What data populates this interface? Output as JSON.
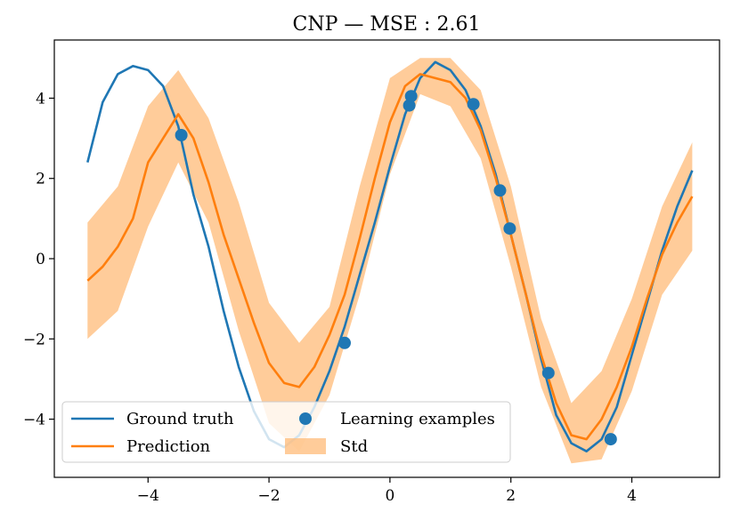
{
  "chart_data": {
    "type": "line",
    "title": "CNP — MSE : 2.61",
    "xlabel": "",
    "ylabel": "",
    "xlim": [
      -5.55,
      5.45
    ],
    "ylim": [
      -5.45,
      5.45
    ],
    "xticks": [
      -4,
      -2,
      0,
      2,
      4
    ],
    "yticks": [
      -4,
      -2,
      0,
      2,
      4
    ],
    "xtick_labels": [
      "−4",
      "−2",
      "0",
      "2",
      "4"
    ],
    "ytick_labels": [
      "−4",
      "−2",
      "0",
      "2",
      "4"
    ],
    "grid": false,
    "legend_position": "bottom-left",
    "series": [
      {
        "name": "Ground truth",
        "kind": "line",
        "color": "#1f77b4",
        "x": [
          -5.0,
          -4.75,
          -4.5,
          -4.25,
          -4.0,
          -3.75,
          -3.5,
          -3.25,
          -3.0,
          -2.75,
          -2.5,
          -2.25,
          -2.0,
          -1.75,
          -1.5,
          -1.25,
          -1.0,
          -0.75,
          -0.5,
          -0.25,
          0.0,
          0.25,
          0.5,
          0.75,
          1.0,
          1.25,
          1.5,
          1.75,
          2.0,
          2.25,
          2.5,
          2.75,
          3.0,
          3.25,
          3.5,
          3.75,
          4.0,
          4.25,
          4.5,
          4.75,
          5.0
        ],
        "y": [
          2.4,
          3.9,
          4.6,
          4.8,
          4.7,
          4.3,
          3.3,
          1.6,
          0.3,
          -1.3,
          -2.7,
          -3.8,
          -4.5,
          -4.7,
          -4.4,
          -3.7,
          -2.8,
          -1.7,
          -0.4,
          0.9,
          2.3,
          3.6,
          4.5,
          4.9,
          4.7,
          4.2,
          3.3,
          2.1,
          0.6,
          -0.9,
          -2.5,
          -3.9,
          -4.6,
          -4.8,
          -4.5,
          -3.7,
          -2.4,
          -1.1,
          0.2,
          1.3,
          2.2
        ]
      },
      {
        "name": "Prediction",
        "kind": "line",
        "color": "#ff7f0e",
        "x": [
          -5.0,
          -4.75,
          -4.5,
          -4.25,
          -4.0,
          -3.75,
          -3.5,
          -3.25,
          -3.0,
          -2.75,
          -2.5,
          -2.25,
          -2.0,
          -1.75,
          -1.5,
          -1.25,
          -1.0,
          -0.75,
          -0.5,
          -0.25,
          0.0,
          0.25,
          0.5,
          0.75,
          1.0,
          1.25,
          1.5,
          1.75,
          2.0,
          2.25,
          2.5,
          2.75,
          3.0,
          3.25,
          3.5,
          3.75,
          4.0,
          4.25,
          4.5,
          4.75,
          5.0
        ],
        "y": [
          -0.55,
          -0.2,
          0.3,
          1.0,
          2.4,
          3.0,
          3.6,
          3.0,
          1.9,
          0.6,
          -0.5,
          -1.6,
          -2.6,
          -3.1,
          -3.2,
          -2.7,
          -1.9,
          -0.9,
          0.5,
          2.0,
          3.4,
          4.3,
          4.6,
          4.5,
          4.4,
          4.0,
          3.2,
          2.0,
          0.6,
          -0.9,
          -2.4,
          -3.6,
          -4.4,
          -4.5,
          -4.0,
          -3.2,
          -2.2,
          -1.0,
          0.1,
          0.9,
          1.55
        ]
      },
      {
        "name": "Learning examples",
        "kind": "scatter",
        "color": "#1f77b4",
        "x": [
          -3.45,
          -0.75,
          0.32,
          0.35,
          1.38,
          1.82,
          1.98,
          2.62,
          3.65
        ],
        "y": [
          3.08,
          -2.1,
          3.82,
          4.05,
          3.85,
          1.7,
          0.75,
          -2.85,
          -4.5
        ]
      },
      {
        "name": "Std",
        "kind": "band",
        "color": "#ffbb78",
        "x": [
          -5.0,
          -4.5,
          -4.0,
          -3.5,
          -3.0,
          -2.5,
          -2.0,
          -1.5,
          -1.0,
          -0.5,
          0.0,
          0.5,
          1.0,
          1.5,
          2.0,
          2.5,
          3.0,
          3.5,
          4.0,
          4.5,
          5.0
        ],
        "lower": [
          -2.0,
          -1.3,
          0.8,
          2.4,
          0.9,
          -1.8,
          -4.1,
          -4.8,
          -3.4,
          -0.9,
          2.1,
          4.1,
          3.8,
          2.5,
          -0.2,
          -3.2,
          -5.1,
          -5.0,
          -3.3,
          -0.9,
          0.2
        ],
        "upper": [
          0.9,
          1.8,
          3.8,
          4.7,
          3.5,
          1.4,
          -1.1,
          -2.1,
          -1.2,
          1.8,
          4.5,
          5.0,
          5.0,
          4.2,
          1.8,
          -1.5,
          -3.6,
          -2.8,
          -1.0,
          1.3,
          2.9
        ]
      }
    ]
  }
}
